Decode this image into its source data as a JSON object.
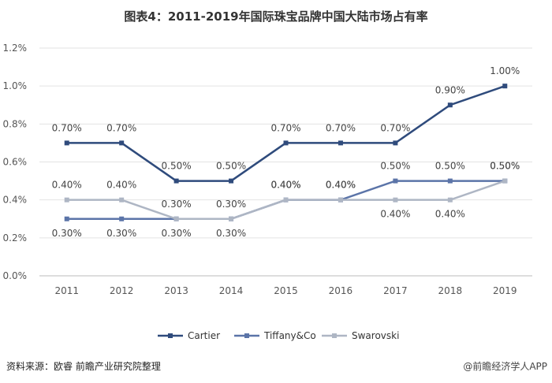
{
  "title": "图表4：2011-2019年国际珠宝品牌中国大陆市场占有率",
  "source": "资料来源：欧睿 前瞻产业研究院整理",
  "watermark_bottom": "@前瞻经济学人APP",
  "chart_data": {
    "type": "line",
    "title": "图表4：2011-2019年国际珠宝品牌中国大陆市场占有率",
    "x": [
      "2011",
      "2012",
      "2013",
      "2014",
      "2015",
      "2016",
      "2017",
      "2018",
      "2019"
    ],
    "ylim": [
      0,
      1.2
    ],
    "yticks": [
      "0.0%",
      "0.2%",
      "0.4%",
      "0.6%",
      "0.8%",
      "1.0%",
      "1.2%"
    ],
    "legend_position": "bottom",
    "grid": true,
    "series": [
      {
        "name": "Cartier",
        "color": "#2f4b7c",
        "values": [
          0.7,
          0.7,
          0.5,
          0.5,
          0.7,
          0.7,
          0.7,
          0.9,
          1.0
        ],
        "labels": [
          "0.70%",
          "0.70%",
          "0.50%",
          "0.50%",
          "0.70%",
          "0.70%",
          "0.70%",
          "0.90%",
          "1.00%"
        ]
      },
      {
        "name": "Tiffany&Co",
        "color": "#5b74a8",
        "values": [
          0.3,
          0.3,
          0.3,
          0.3,
          0.4,
          0.4,
          0.5,
          0.5,
          0.5
        ],
        "labels": [
          "0.30%",
          "0.30%",
          "0.30%",
          "0.30%",
          "0.40%",
          "0.40%",
          "0.50%",
          "0.50%",
          "0.50%"
        ]
      },
      {
        "name": "Swarovski",
        "color": "#aeb6c4",
        "values": [
          0.4,
          0.4,
          0.3,
          0.3,
          0.4,
          0.4,
          0.4,
          0.4,
          0.5
        ],
        "labels": [
          "0.40%",
          "0.40%",
          "0.30%",
          "0.30%",
          "0.40%",
          "0.40%",
          "0.40%",
          "0.40%",
          "0.50%"
        ]
      }
    ]
  }
}
